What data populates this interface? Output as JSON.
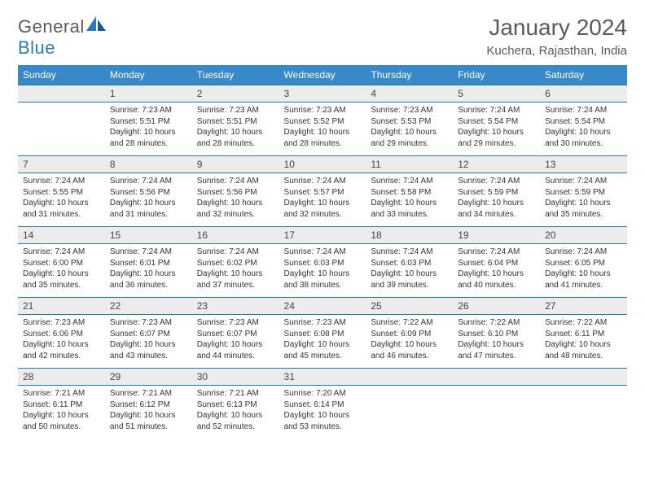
{
  "brand": {
    "text1": "General",
    "text2": "Blue"
  },
  "title": "January 2024",
  "location": "Kuchera, Rajasthan, India",
  "colors": {
    "headerBg": "#3789c9",
    "dayNumBg": "#ececec",
    "border": "#2a7ab8",
    "text": "#333333",
    "titleText": "#5a5a5a"
  },
  "typography": {
    "title_fontsize": 28,
    "location_fontsize": 15,
    "dow_fontsize": 12,
    "daynum_fontsize": 12,
    "detail_fontsize": 10
  },
  "daysOfWeek": [
    "Sunday",
    "Monday",
    "Tuesday",
    "Wednesday",
    "Thursday",
    "Friday",
    "Saturday"
  ],
  "weeks": [
    [
      {
        "n": "",
        "sunrise": "",
        "sunset": "",
        "daylight": ""
      },
      {
        "n": "1",
        "sunrise": "Sunrise: 7:23 AM",
        "sunset": "Sunset: 5:51 PM",
        "daylight": "Daylight: 10 hours and 28 minutes."
      },
      {
        "n": "2",
        "sunrise": "Sunrise: 7:23 AM",
        "sunset": "Sunset: 5:51 PM",
        "daylight": "Daylight: 10 hours and 28 minutes."
      },
      {
        "n": "3",
        "sunrise": "Sunrise: 7:23 AM",
        "sunset": "Sunset: 5:52 PM",
        "daylight": "Daylight: 10 hours and 28 minutes."
      },
      {
        "n": "4",
        "sunrise": "Sunrise: 7:23 AM",
        "sunset": "Sunset: 5:53 PM",
        "daylight": "Daylight: 10 hours and 29 minutes."
      },
      {
        "n": "5",
        "sunrise": "Sunrise: 7:24 AM",
        "sunset": "Sunset: 5:54 PM",
        "daylight": "Daylight: 10 hours and 29 minutes."
      },
      {
        "n": "6",
        "sunrise": "Sunrise: 7:24 AM",
        "sunset": "Sunset: 5:54 PM",
        "daylight": "Daylight: 10 hours and 30 minutes."
      }
    ],
    [
      {
        "n": "7",
        "sunrise": "Sunrise: 7:24 AM",
        "sunset": "Sunset: 5:55 PM",
        "daylight": "Daylight: 10 hours and 31 minutes."
      },
      {
        "n": "8",
        "sunrise": "Sunrise: 7:24 AM",
        "sunset": "Sunset: 5:56 PM",
        "daylight": "Daylight: 10 hours and 31 minutes."
      },
      {
        "n": "9",
        "sunrise": "Sunrise: 7:24 AM",
        "sunset": "Sunset: 5:56 PM",
        "daylight": "Daylight: 10 hours and 32 minutes."
      },
      {
        "n": "10",
        "sunrise": "Sunrise: 7:24 AM",
        "sunset": "Sunset: 5:57 PM",
        "daylight": "Daylight: 10 hours and 32 minutes."
      },
      {
        "n": "11",
        "sunrise": "Sunrise: 7:24 AM",
        "sunset": "Sunset: 5:58 PM",
        "daylight": "Daylight: 10 hours and 33 minutes."
      },
      {
        "n": "12",
        "sunrise": "Sunrise: 7:24 AM",
        "sunset": "Sunset: 5:59 PM",
        "daylight": "Daylight: 10 hours and 34 minutes."
      },
      {
        "n": "13",
        "sunrise": "Sunrise: 7:24 AM",
        "sunset": "Sunset: 5:59 PM",
        "daylight": "Daylight: 10 hours and 35 minutes."
      }
    ],
    [
      {
        "n": "14",
        "sunrise": "Sunrise: 7:24 AM",
        "sunset": "Sunset: 6:00 PM",
        "daylight": "Daylight: 10 hours and 35 minutes."
      },
      {
        "n": "15",
        "sunrise": "Sunrise: 7:24 AM",
        "sunset": "Sunset: 6:01 PM",
        "daylight": "Daylight: 10 hours and 36 minutes."
      },
      {
        "n": "16",
        "sunrise": "Sunrise: 7:24 AM",
        "sunset": "Sunset: 6:02 PM",
        "daylight": "Daylight: 10 hours and 37 minutes."
      },
      {
        "n": "17",
        "sunrise": "Sunrise: 7:24 AM",
        "sunset": "Sunset: 6:03 PM",
        "daylight": "Daylight: 10 hours and 38 minutes."
      },
      {
        "n": "18",
        "sunrise": "Sunrise: 7:24 AM",
        "sunset": "Sunset: 6:03 PM",
        "daylight": "Daylight: 10 hours and 39 minutes."
      },
      {
        "n": "19",
        "sunrise": "Sunrise: 7:24 AM",
        "sunset": "Sunset: 6:04 PM",
        "daylight": "Daylight: 10 hours and 40 minutes."
      },
      {
        "n": "20",
        "sunrise": "Sunrise: 7:24 AM",
        "sunset": "Sunset: 6:05 PM",
        "daylight": "Daylight: 10 hours and 41 minutes."
      }
    ],
    [
      {
        "n": "21",
        "sunrise": "Sunrise: 7:23 AM",
        "sunset": "Sunset: 6:06 PM",
        "daylight": "Daylight: 10 hours and 42 minutes."
      },
      {
        "n": "22",
        "sunrise": "Sunrise: 7:23 AM",
        "sunset": "Sunset: 6:07 PM",
        "daylight": "Daylight: 10 hours and 43 minutes."
      },
      {
        "n": "23",
        "sunrise": "Sunrise: 7:23 AM",
        "sunset": "Sunset: 6:07 PM",
        "daylight": "Daylight: 10 hours and 44 minutes."
      },
      {
        "n": "24",
        "sunrise": "Sunrise: 7:23 AM",
        "sunset": "Sunset: 6:08 PM",
        "daylight": "Daylight: 10 hours and 45 minutes."
      },
      {
        "n": "25",
        "sunrise": "Sunrise: 7:22 AM",
        "sunset": "Sunset: 6:09 PM",
        "daylight": "Daylight: 10 hours and 46 minutes."
      },
      {
        "n": "26",
        "sunrise": "Sunrise: 7:22 AM",
        "sunset": "Sunset: 6:10 PM",
        "daylight": "Daylight: 10 hours and 47 minutes."
      },
      {
        "n": "27",
        "sunrise": "Sunrise: 7:22 AM",
        "sunset": "Sunset: 6:11 PM",
        "daylight": "Daylight: 10 hours and 48 minutes."
      }
    ],
    [
      {
        "n": "28",
        "sunrise": "Sunrise: 7:21 AM",
        "sunset": "Sunset: 6:11 PM",
        "daylight": "Daylight: 10 hours and 50 minutes."
      },
      {
        "n": "29",
        "sunrise": "Sunrise: 7:21 AM",
        "sunset": "Sunset: 6:12 PM",
        "daylight": "Daylight: 10 hours and 51 minutes."
      },
      {
        "n": "30",
        "sunrise": "Sunrise: 7:21 AM",
        "sunset": "Sunset: 6:13 PM",
        "daylight": "Daylight: 10 hours and 52 minutes."
      },
      {
        "n": "31",
        "sunrise": "Sunrise: 7:20 AM",
        "sunset": "Sunset: 6:14 PM",
        "daylight": "Daylight: 10 hours and 53 minutes."
      },
      {
        "n": "",
        "sunrise": "",
        "sunset": "",
        "daylight": ""
      },
      {
        "n": "",
        "sunrise": "",
        "sunset": "",
        "daylight": ""
      },
      {
        "n": "",
        "sunrise": "",
        "sunset": "",
        "daylight": ""
      }
    ]
  ]
}
